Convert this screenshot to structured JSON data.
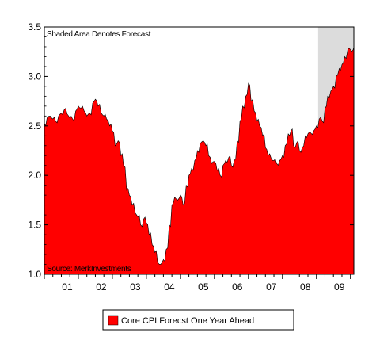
{
  "chart_data": {
    "type": "area",
    "title": "",
    "xlabel": "",
    "ylabel": "",
    "ylim": [
      1.0,
      3.5
    ],
    "xlim": [
      2000.0,
      2009.1
    ],
    "y_ticks": [
      "1.0",
      "1.5",
      "2.0",
      "2.5",
      "3.0",
      "3.5"
    ],
    "x_ticks": [
      "01",
      "02",
      "03",
      "04",
      "05",
      "06",
      "07",
      "08",
      "09"
    ],
    "annotations": {
      "top": "Shaded Area Denotes Forecast",
      "bottom": "Source: MerkInvestments"
    },
    "forecast_start": 2008.05,
    "grid": false,
    "legend_position": "bottom-center",
    "colors": {
      "fill": "#ff0000",
      "forecast_shade": "#dcdcdc",
      "axis": "#000000"
    },
    "series": [
      {
        "name": "Core CPI Forecst One Year Ahead",
        "x": [
          2000.0,
          2000.08,
          2000.17,
          2000.25,
          2000.33,
          2000.42,
          2000.5,
          2000.58,
          2000.67,
          2000.75,
          2000.83,
          2000.92,
          2001.0,
          2001.08,
          2001.17,
          2001.25,
          2001.33,
          2001.42,
          2001.5,
          2001.58,
          2001.67,
          2001.75,
          2001.83,
          2001.92,
          2002.0,
          2002.08,
          2002.17,
          2002.25,
          2002.33,
          2002.42,
          2002.5,
          2002.58,
          2002.67,
          2002.75,
          2002.83,
          2002.92,
          2003.0,
          2003.08,
          2003.17,
          2003.25,
          2003.33,
          2003.42,
          2003.5,
          2003.58,
          2003.67,
          2003.75,
          2003.83,
          2003.92,
          2004.0,
          2004.08,
          2004.17,
          2004.25,
          2004.33,
          2004.42,
          2004.5,
          2004.58,
          2004.67,
          2004.75,
          2004.83,
          2004.92,
          2005.0,
          2005.08,
          2005.17,
          2005.25,
          2005.33,
          2005.42,
          2005.5,
          2005.58,
          2005.67,
          2005.75,
          2005.83,
          2005.92,
          2006.0,
          2006.08,
          2006.17,
          2006.25,
          2006.33,
          2006.42,
          2006.5,
          2006.58,
          2006.67,
          2006.75,
          2006.83,
          2006.92,
          2007.0,
          2007.08,
          2007.17,
          2007.25,
          2007.33,
          2007.42,
          2007.5,
          2007.58,
          2007.67,
          2007.75,
          2007.83,
          2007.92,
          2008.0,
          2008.08,
          2008.17,
          2008.25,
          2008.33,
          2008.42,
          2008.5,
          2008.58,
          2008.67,
          2008.75,
          2008.83,
          2008.92,
          2009.0,
          2009.08
        ],
        "values": [
          2.52,
          2.58,
          2.6,
          2.57,
          2.55,
          2.6,
          2.63,
          2.66,
          2.62,
          2.58,
          2.57,
          2.65,
          2.7,
          2.68,
          2.65,
          2.6,
          2.63,
          2.73,
          2.77,
          2.7,
          2.63,
          2.6,
          2.57,
          2.5,
          2.45,
          2.3,
          2.35,
          2.2,
          2.1,
          1.85,
          1.8,
          1.7,
          1.62,
          1.58,
          1.5,
          1.56,
          1.52,
          1.4,
          1.3,
          1.22,
          1.12,
          1.1,
          1.15,
          1.25,
          1.5,
          1.7,
          1.78,
          1.75,
          1.8,
          1.7,
          1.9,
          2.0,
          2.07,
          2.15,
          2.25,
          2.32,
          2.35,
          2.3,
          2.2,
          2.12,
          2.14,
          2.05,
          2.0,
          2.1,
          2.15,
          2.18,
          2.1,
          2.15,
          2.35,
          2.55,
          2.7,
          2.8,
          2.93,
          2.75,
          2.65,
          2.55,
          2.5,
          2.4,
          2.28,
          2.2,
          2.17,
          2.15,
          2.12,
          2.15,
          2.2,
          2.3,
          2.42,
          2.45,
          2.3,
          2.33,
          2.25,
          2.28,
          2.4,
          2.42,
          2.43,
          2.45,
          2.5,
          2.57,
          2.55,
          2.68,
          2.8,
          2.85,
          2.9,
          3.0,
          3.08,
          3.12,
          3.2,
          3.27,
          3.27,
          3.27
        ]
      }
    ]
  }
}
